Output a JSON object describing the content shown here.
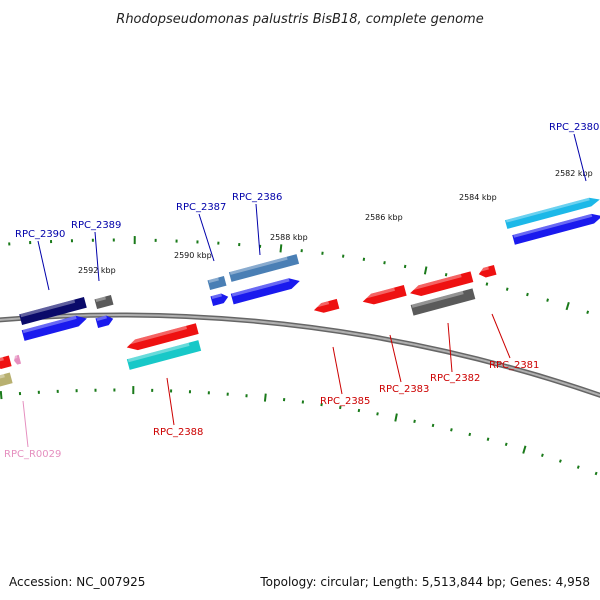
{
  "title": "Rhodopseudomonas palustris BisB18, complete genome",
  "footer": {
    "accession": "Accession: NC_007925",
    "summary": "Topology: circular; Length: 5,513,844 bp; Genes: 4,958"
  },
  "colors": {
    "plus_label": "#0000aa",
    "minus_label": "#cc0000",
    "rna_label": "#e58fbf",
    "backbone": "#888888",
    "tick": "#1a7a1a",
    "red": "#ee1111",
    "blue": "#1a1aee",
    "navy": "#0a0a6a",
    "gray": "#5a5a5a",
    "steel": "#4a7fb5",
    "sky": "#1cb8e8",
    "cyan": "#18c8c8",
    "olive": "#b8b070",
    "pink": "#e58fbf"
  },
  "ticks": [
    "2582 kbp",
    "2584 kbp",
    "2586 kbp",
    "2588 kbp",
    "2590 kbp",
    "2592 kbp"
  ],
  "genes": [
    {
      "label": "RPC_2380",
      "strand": "plus"
    },
    {
      "label": "RPC_2381",
      "strand": "minus"
    },
    {
      "label": "RPC_2382",
      "strand": "minus"
    },
    {
      "label": "RPC_2383",
      "strand": "minus"
    },
    {
      "label": "RPC_2385",
      "strand": "minus"
    },
    {
      "label": "RPC_2386",
      "strand": "plus"
    },
    {
      "label": "RPC_2387",
      "strand": "plus"
    },
    {
      "label": "RPC_2388",
      "strand": "minus"
    },
    {
      "label": "RPC_2389",
      "strand": "plus"
    },
    {
      "label": "RPC_2390",
      "strand": "plus"
    },
    {
      "label": "RPC_R0029",
      "strand": "rna"
    }
  ]
}
